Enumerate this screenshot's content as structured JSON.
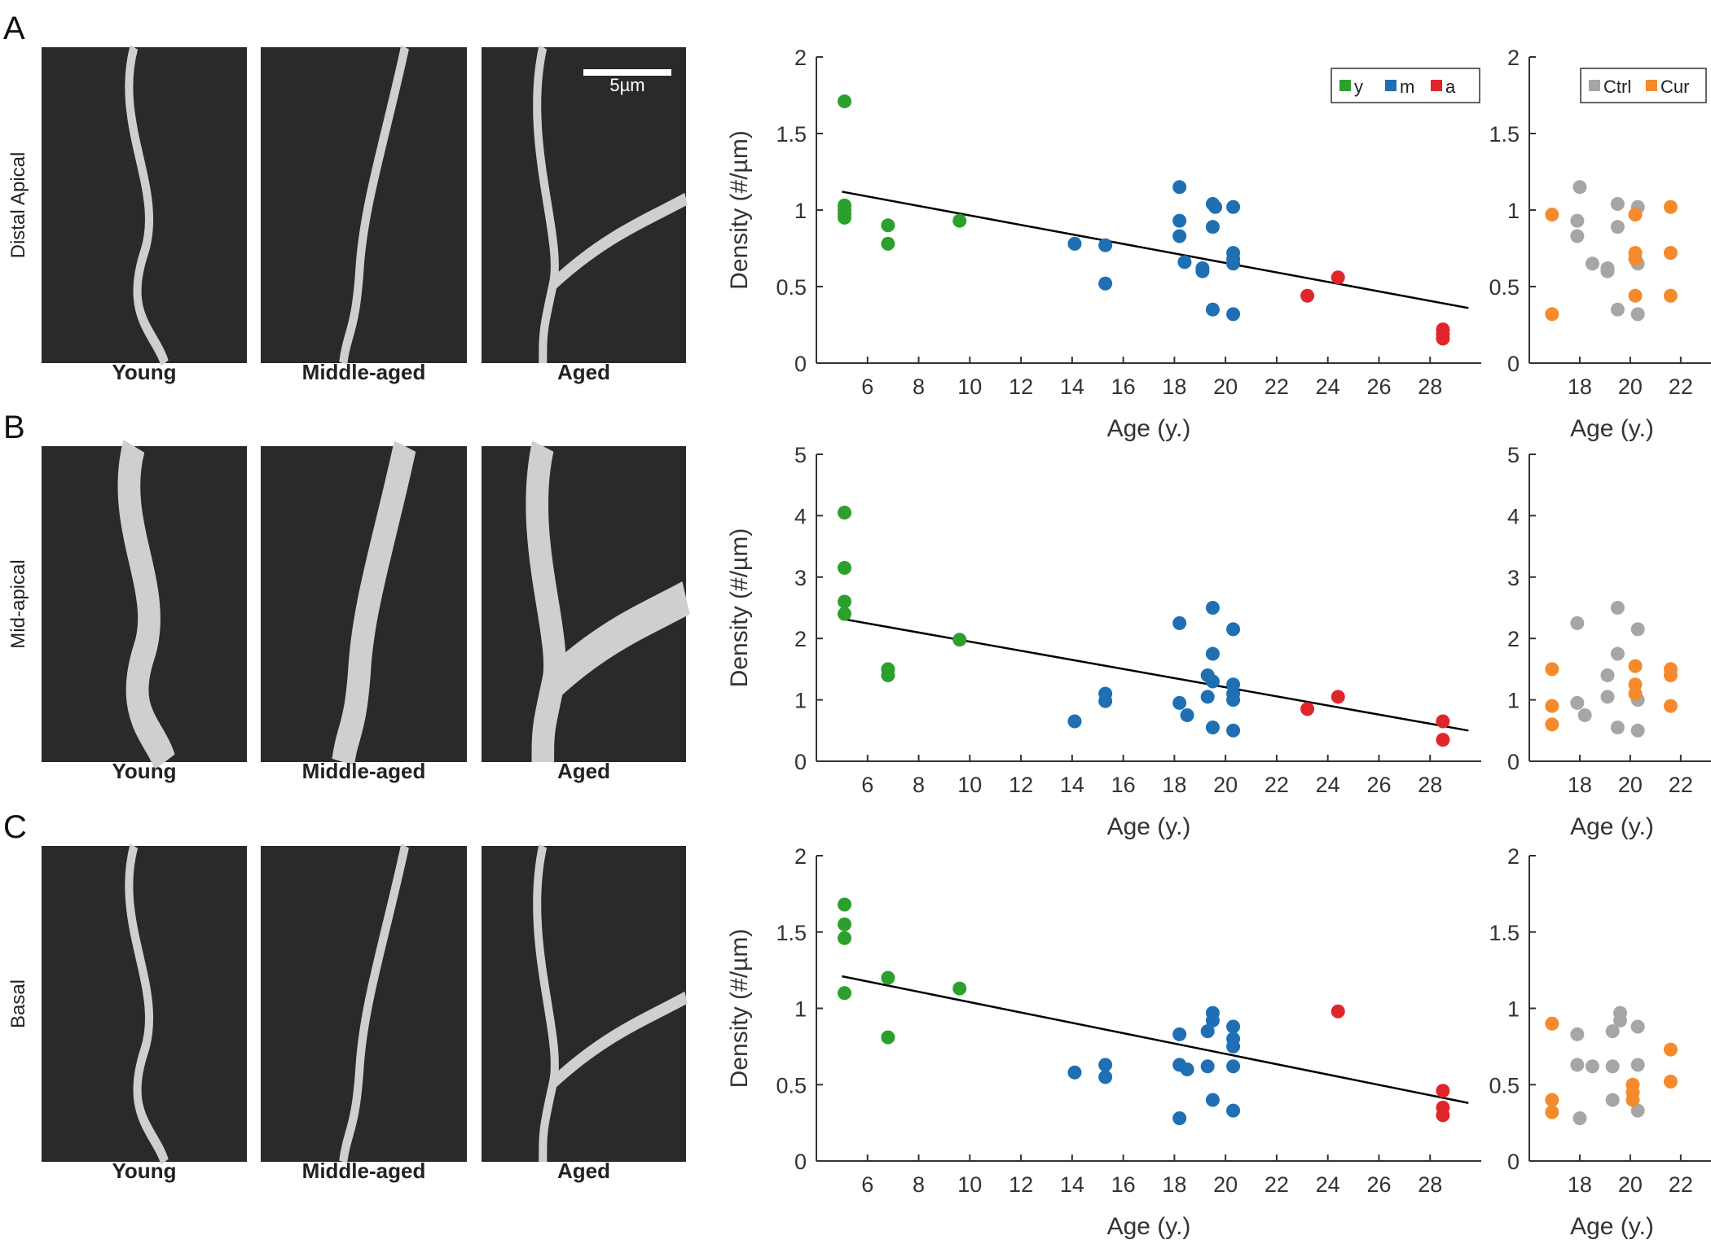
{
  "scale_bar": "5µm",
  "panels": [
    {
      "letter": "A",
      "region": "Distal Apical",
      "images": [
        "Young",
        "Middle-aged",
        "Aged"
      ]
    },
    {
      "letter": "B",
      "region": "Mid-apical",
      "images": [
        "Young",
        "Middle-aged",
        "Aged"
      ]
    },
    {
      "letter": "C",
      "region": "Basal",
      "images": [
        "Young",
        "Middle-aged",
        "Aged"
      ]
    }
  ],
  "chart_data": [
    {
      "type": "scatter",
      "xlabel": "Age (y.)",
      "ylabel": "Density (#/µm)",
      "xlim": [
        4,
        30
      ],
      "ylim": [
        0,
        2
      ],
      "xticks": [
        6,
        8,
        10,
        12,
        14,
        16,
        18,
        20,
        22,
        24,
        26,
        28
      ],
      "yticks": [
        0,
        0.5,
        1,
        1.5,
        2
      ],
      "legend": "upper right",
      "fit": {
        "x": [
          5,
          29.5
        ],
        "y": [
          1.12,
          0.36
        ],
        "color": "#000000"
      },
      "series": [
        {
          "name": "y",
          "color": "#2ca02c",
          "x": [
            5.1,
            5.1,
            5.1,
            5.1,
            5.1,
            6.8,
            6.8,
            9.6
          ],
          "values": [
            1.71,
            1.03,
            1.0,
            0.97,
            0.95,
            0.9,
            0.78,
            0.93
          ]
        },
        {
          "name": "m",
          "color": "#1f6fb4",
          "x": [
            14.1,
            15.3,
            15.3,
            18.2,
            18.2,
            18.2,
            18.4,
            19.1,
            19.1,
            19.5,
            19.6,
            19.5,
            19.5,
            20.3,
            20.3,
            20.3,
            20.3,
            20.3
          ],
          "values": [
            0.78,
            0.77,
            0.52,
            1.15,
            0.93,
            0.83,
            0.66,
            0.6,
            0.62,
            1.04,
            1.02,
            0.89,
            0.35,
            1.02,
            0.72,
            0.68,
            0.65,
            0.32
          ]
        },
        {
          "name": "a",
          "color": "#e0262b",
          "x": [
            23.2,
            24.4,
            28.5,
            28.5,
            28.5
          ],
          "values": [
            0.44,
            0.56,
            0.22,
            0.19,
            0.16
          ]
        }
      ]
    },
    {
      "type": "scatter",
      "xlabel": "Age (y.)",
      "xlim": [
        16,
        23.2
      ],
      "ylim": [
        0,
        2
      ],
      "xticks": [
        18,
        20,
        22
      ],
      "yticks": [
        0,
        0.5,
        1,
        1.5,
        2
      ],
      "legend": "upper right",
      "series": [
        {
          "name": "Ctrl",
          "color": "#a6a6a6",
          "x": [
            17.9,
            17.9,
            18.0,
            18.5,
            19.1,
            19.1,
            19.5,
            19.5,
            19.5,
            20.3,
            20.3,
            20.3
          ],
          "values": [
            0.93,
            0.83,
            1.15,
            0.65,
            0.62,
            0.6,
            1.04,
            0.89,
            0.35,
            1.02,
            0.65,
            0.32
          ]
        },
        {
          "name": "Cur",
          "color": "#f58a2c",
          "x": [
            16.9,
            16.9,
            20.2,
            20.2,
            20.2,
            20.2,
            21.6,
            21.6,
            21.6
          ],
          "values": [
            0.97,
            0.32,
            0.97,
            0.72,
            0.68,
            0.44,
            1.02,
            0.72,
            0.44
          ]
        }
      ]
    },
    {
      "type": "scatter",
      "xlabel": "Age (y.)",
      "ylabel": "Density (#/µm)",
      "xlim": [
        4,
        30
      ],
      "ylim": [
        0,
        5
      ],
      "xticks": [
        6,
        8,
        10,
        12,
        14,
        16,
        18,
        20,
        22,
        24,
        26,
        28
      ],
      "yticks": [
        0,
        1,
        2,
        3,
        4,
        5
      ],
      "fit": {
        "x": [
          5,
          29.5
        ],
        "y": [
          2.32,
          0.5
        ],
        "color": "#000000"
      },
      "series": [
        {
          "color": "#2ca02c",
          "x": [
            5.1,
            5.1,
            5.1,
            5.1,
            6.8,
            6.8,
            9.6
          ],
          "values": [
            4.05,
            3.15,
            2.6,
            2.4,
            1.5,
            1.4,
            1.98
          ]
        },
        {
          "color": "#1f6fb4",
          "x": [
            14.1,
            15.3,
            15.3,
            18.2,
            18.2,
            18.5,
            19.3,
            19.3,
            19.5,
            19.5,
            19.5,
            19.5,
            20.3,
            20.3,
            20.3,
            20.3,
            20.3
          ],
          "values": [
            0.65,
            1.1,
            0.98,
            2.25,
            0.95,
            0.75,
            1.4,
            1.05,
            2.5,
            1.75,
            1.3,
            0.55,
            2.15,
            1.25,
            1.1,
            1.0,
            0.5
          ]
        },
        {
          "color": "#e0262b",
          "x": [
            23.2,
            24.4,
            28.5,
            28.5
          ],
          "values": [
            0.85,
            1.05,
            0.65,
            0.35
          ]
        }
      ]
    },
    {
      "type": "scatter",
      "xlabel": "Age (y.)",
      "xlim": [
        16,
        23.2
      ],
      "ylim": [
        0,
        5
      ],
      "xticks": [
        18,
        20,
        22
      ],
      "yticks": [
        0,
        1,
        2,
        3,
        4,
        5
      ],
      "series": [
        {
          "color": "#a6a6a6",
          "x": [
            17.9,
            17.9,
            18.2,
            19.1,
            19.1,
            19.5,
            19.5,
            19.5,
            20.3,
            20.3,
            20.3
          ],
          "values": [
            2.25,
            0.95,
            0.75,
            1.4,
            1.05,
            2.5,
            1.75,
            0.55,
            2.15,
            1.0,
            0.5
          ]
        },
        {
          "color": "#f58a2c",
          "x": [
            16.9,
            16.9,
            16.9,
            20.2,
            20.2,
            20.2,
            21.6,
            21.6,
            21.6
          ],
          "values": [
            1.5,
            0.9,
            0.6,
            1.55,
            1.25,
            1.1,
            1.5,
            1.4,
            0.9
          ]
        }
      ]
    },
    {
      "type": "scatter",
      "xlabel": "Age (y.)",
      "ylabel": "Density (#/µm)",
      "xlim": [
        4,
        30
      ],
      "ylim": [
        0,
        2
      ],
      "xticks": [
        6,
        8,
        10,
        12,
        14,
        16,
        18,
        20,
        22,
        24,
        26,
        28
      ],
      "yticks": [
        0,
        0.5,
        1,
        1.5,
        2
      ],
      "fit": {
        "x": [
          5,
          29.5
        ],
        "y": [
          1.21,
          0.38
        ],
        "color": "#000000"
      },
      "series": [
        {
          "color": "#2ca02c",
          "x": [
            5.1,
            5.1,
            5.1,
            5.1,
            6.8,
            6.8,
            9.6
          ],
          "values": [
            1.68,
            1.55,
            1.46,
            1.1,
            1.2,
            0.81,
            1.13
          ]
        },
        {
          "color": "#1f6fb4",
          "x": [
            14.1,
            15.3,
            15.3,
            18.2,
            18.2,
            18.2,
            18.5,
            19.3,
            19.3,
            19.5,
            19.5,
            19.5,
            20.3,
            20.3,
            20.3,
            20.3,
            20.3
          ],
          "values": [
            0.58,
            0.63,
            0.55,
            0.83,
            0.63,
            0.28,
            0.6,
            0.85,
            0.62,
            0.97,
            0.92,
            0.4,
            0.88,
            0.8,
            0.75,
            0.62,
            0.33
          ]
        },
        {
          "color": "#e0262b",
          "x": [
            24.4,
            28.5,
            28.5,
            28.5
          ],
          "values": [
            0.98,
            0.46,
            0.35,
            0.3
          ]
        }
      ]
    },
    {
      "type": "scatter",
      "xlabel": "Age (y.)",
      "xlim": [
        16,
        23.2
      ],
      "ylim": [
        0,
        2
      ],
      "xticks": [
        18,
        20,
        22
      ],
      "yticks": [
        0,
        0.5,
        1,
        1.5,
        2
      ],
      "series": [
        {
          "color": "#a6a6a6",
          "x": [
            17.9,
            17.9,
            18.0,
            18.5,
            19.3,
            19.3,
            19.3,
            19.6,
            19.6,
            20.3,
            20.3,
            20.3
          ],
          "values": [
            0.83,
            0.63,
            0.28,
            0.62,
            0.85,
            0.62,
            0.4,
            0.97,
            0.92,
            0.88,
            0.63,
            0.33
          ]
        },
        {
          "color": "#f58a2c",
          "x": [
            16.9,
            16.9,
            16.9,
            20.1,
            20.1,
            20.1,
            21.6,
            21.6
          ],
          "values": [
            0.9,
            0.4,
            0.32,
            0.5,
            0.45,
            0.4,
            0.73,
            0.52
          ]
        }
      ]
    }
  ]
}
